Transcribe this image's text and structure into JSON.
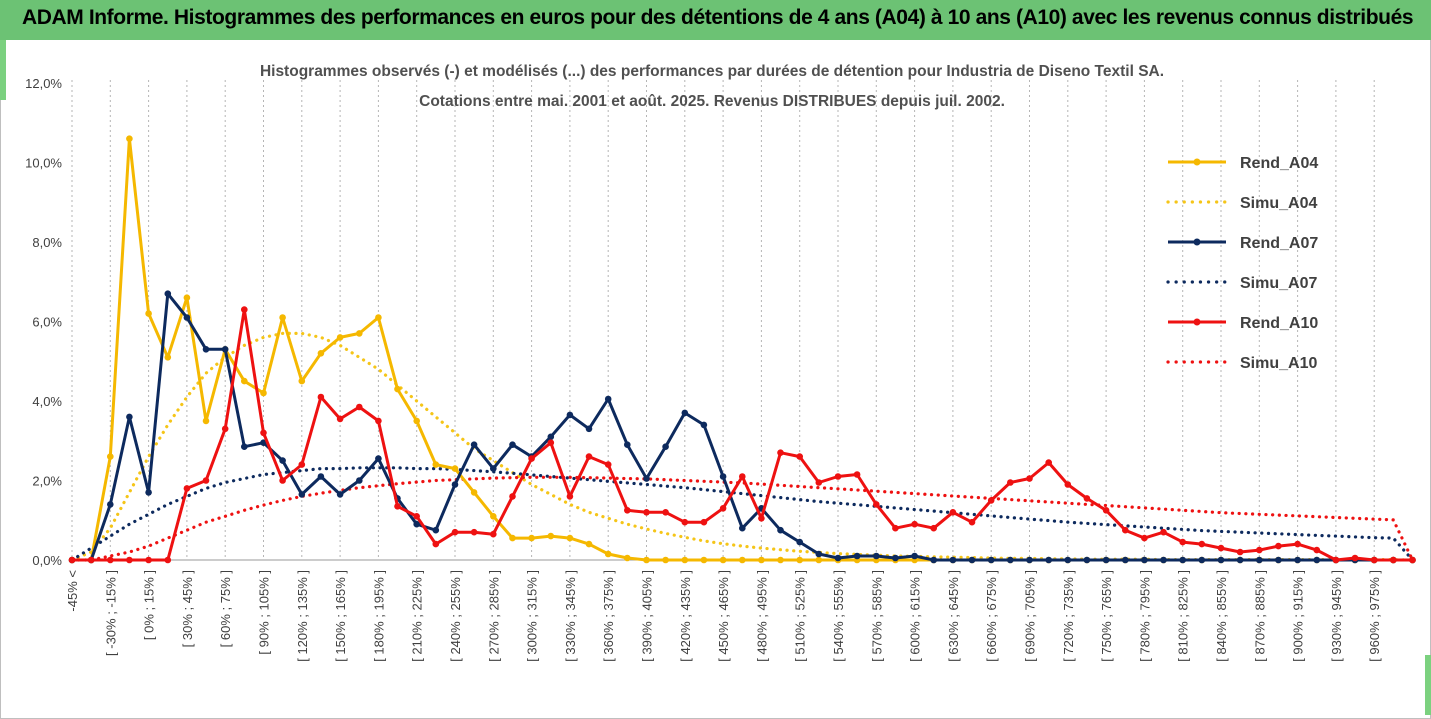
{
  "banner": {
    "title": "ADAM Informe. Histogrammes des performances en euros pour des détentions de 4 ans (A04) à 10 ans (A10) avec les revenus connus distribués"
  },
  "chart_data": {
    "type": "line",
    "title": "Histogrammes observés (-) et modélisés (...) des performances par durées de détention pour Industria de Diseno Textil SA.",
    "subtitle": "Cotations entre mai. 2001 et août. 2025. Revenus DISTRIBUES depuis juil. 2002.",
    "ylim": [
      0,
      12
    ],
    "yticks": [
      "0,0%",
      "2,0%",
      "4,0%",
      "6,0%",
      "8,0%",
      "10,0%",
      "12,0%"
    ],
    "grid": "vertical dotted",
    "legend_position": "right",
    "xtick_labels": [
      "-45% <",
      "[ -30% ; -15% ]",
      "[ 0% ; 15% ]",
      "[ 30% ; 45% ]",
      "[ 60% ; 75% ]",
      "[ 90% ; 105% ]",
      "[ 120% ; 135% ]",
      "[ 150% ; 165% ]",
      "[ 180% ; 195% ]",
      "[ 210% ; 225% ]",
      "[ 240% ; 255% ]",
      "[ 270% ; 285% ]",
      "[ 300% ; 315% ]",
      "[ 330% ; 345% ]",
      "[ 360% ; 375% ]",
      "[ 390% ; 405% ]",
      "[ 420% ; 435% ]",
      "[ 450% ; 465% ]",
      "[ 480% ; 495% ]",
      "[ 510% ; 525% ]",
      "[ 540% ; 555% ]",
      "[ 570% ; 585% ]",
      "[ 600% ; 615% ]",
      "[ 630% ; 645% ]",
      "[ 660% ; 675% ]",
      "[ 690% ; 705% ]",
      "[ 720% ; 735% ]",
      "[ 750% ; 765% ]",
      "[ 780% ; 795% ]",
      "[ 810% ; 825% ]",
      "[ 840% ; 855% ]",
      "[ 870% ; 885% ]",
      "[ 900% ; 915% ]",
      "[ 930% ; 945% ]",
      "[ 960% ; 975% ]"
    ],
    "series": [
      {
        "name": "Rend_A04",
        "style": "solid",
        "color": "#f5b800",
        "values": [
          0,
          0,
          2.6,
          10.6,
          6.2,
          5.1,
          6.6,
          3.5,
          5.3,
          4.5,
          4.2,
          6.1,
          4.5,
          5.2,
          5.6,
          5.7,
          6.1,
          4.3,
          3.5,
          2.4,
          2.3,
          1.7,
          1.1,
          0.55,
          0.55,
          0.6,
          0.55,
          0.4,
          0.15,
          0.05,
          0,
          0,
          0,
          0,
          0,
          0,
          0,
          0,
          0,
          0,
          0,
          0,
          0,
          0,
          0,
          0,
          0,
          0,
          0,
          0,
          0,
          0,
          0,
          0,
          0,
          0,
          0,
          0,
          0,
          0,
          0,
          0,
          0,
          0,
          0,
          0,
          0,
          0,
          0,
          0,
          0
        ]
      },
      {
        "name": "Simu_A04",
        "style": "dotted",
        "color": "#f5c518",
        "values": [
          0,
          0.2,
          0.8,
          1.7,
          2.6,
          3.4,
          4.1,
          4.7,
          5.1,
          5.4,
          5.6,
          5.7,
          5.7,
          5.6,
          5.4,
          5.1,
          4.8,
          4.4,
          4.0,
          3.6,
          3.2,
          2.8,
          2.5,
          2.2,
          1.9,
          1.65,
          1.4,
          1.2,
          1.05,
          0.9,
          0.78,
          0.67,
          0.57,
          0.48,
          0.41,
          0.35,
          0.3,
          0.26,
          0.22,
          0.19,
          0.16,
          0.14,
          0.12,
          0.1,
          0.09,
          0.08,
          0.07,
          0.06,
          0.05,
          0.04,
          0.04,
          0.03,
          0.03,
          0.02,
          0.02,
          0.02,
          0.02,
          0.01,
          0.01,
          0.01,
          0.01,
          0.01,
          0.01,
          0.01,
          0.01,
          0.01,
          0.01,
          0.01,
          0.01,
          0.01,
          0
        ]
      },
      {
        "name": "Rend_A07",
        "style": "solid",
        "color": "#0d2a5e",
        "values": [
          0,
          0,
          1.4,
          3.6,
          1.7,
          6.7,
          6.1,
          5.3,
          5.3,
          2.85,
          2.95,
          2.5,
          1.65,
          2.1,
          1.65,
          2.0,
          2.55,
          1.55,
          0.9,
          0.75,
          1.9,
          2.9,
          2.3,
          2.9,
          2.6,
          3.1,
          3.65,
          3.3,
          4.05,
          2.9,
          2.05,
          2.85,
          3.7,
          3.4,
          2.1,
          0.8,
          1.3,
          0.75,
          0.45,
          0.15,
          0.05,
          0.1,
          0.1,
          0.05,
          0.1,
          0,
          0,
          0,
          0,
          0,
          0,
          0,
          0,
          0,
          0,
          0,
          0,
          0,
          0,
          0,
          0,
          0,
          0,
          0,
          0,
          0,
          0,
          0,
          0,
          0,
          0
        ]
      },
      {
        "name": "Simu_A07",
        "style": "dotted",
        "color": "#0d2a5e",
        "values": [
          0,
          0.3,
          0.6,
          0.9,
          1.15,
          1.4,
          1.6,
          1.8,
          1.95,
          2.05,
          2.15,
          2.2,
          2.25,
          2.3,
          2.3,
          2.32,
          2.32,
          2.32,
          2.3,
          2.3,
          2.28,
          2.25,
          2.22,
          2.18,
          2.14,
          2.1,
          2.06,
          2.02,
          1.98,
          1.94,
          1.9,
          1.86,
          1.82,
          1.77,
          1.72,
          1.67,
          1.62,
          1.57,
          1.52,
          1.47,
          1.43,
          1.39,
          1.35,
          1.31,
          1.27,
          1.23,
          1.19,
          1.15,
          1.11,
          1.07,
          1.03,
          0.99,
          0.95,
          0.92,
          0.89,
          0.86,
          0.83,
          0.8,
          0.77,
          0.74,
          0.72,
          0.7,
          0.68,
          0.66,
          0.64,
          0.62,
          0.6,
          0.58,
          0.56,
          0.55,
          0
        ]
      },
      {
        "name": "Rend_A10",
        "style": "solid",
        "color": "#ee1111",
        "values": [
          0,
          0,
          0,
          0,
          0,
          0,
          1.8,
          2.0,
          3.3,
          6.3,
          3.2,
          2.0,
          2.4,
          4.1,
          3.55,
          3.85,
          3.5,
          1.35,
          1.1,
          0.4,
          0.7,
          0.7,
          0.65,
          1.6,
          2.55,
          2.95,
          1.6,
          2.6,
          2.4,
          1.25,
          1.2,
          1.2,
          0.95,
          0.95,
          1.3,
          2.1,
          1.05,
          2.7,
          2.6,
          1.95,
          2.1,
          2.15,
          1.4,
          0.8,
          0.9,
          0.8,
          1.2,
          0.95,
          1.5,
          1.95,
          2.05,
          2.45,
          1.9,
          1.55,
          1.25,
          0.75,
          0.55,
          0.7,
          0.45,
          0.4,
          0.3,
          0.2,
          0.25,
          0.35,
          0.4,
          0.25,
          0,
          0.05,
          0,
          0,
          0
        ]
      },
      {
        "name": "Simu_A10",
        "style": "dotted",
        "color": "#ee1111",
        "values": [
          0,
          0,
          0.1,
          0.2,
          0.35,
          0.55,
          0.75,
          0.95,
          1.1,
          1.25,
          1.38,
          1.5,
          1.6,
          1.68,
          1.75,
          1.82,
          1.87,
          1.92,
          1.96,
          2.0,
          2.02,
          2.04,
          2.06,
          2.07,
          2.08,
          2.08,
          2.08,
          2.07,
          2.06,
          2.05,
          2.04,
          2.02,
          2.0,
          1.98,
          1.96,
          1.94,
          1.91,
          1.88,
          1.85,
          1.82,
          1.79,
          1.76,
          1.73,
          1.7,
          1.67,
          1.64,
          1.61,
          1.58,
          1.55,
          1.52,
          1.49,
          1.46,
          1.43,
          1.4,
          1.37,
          1.34,
          1.31,
          1.28,
          1.25,
          1.22,
          1.19,
          1.17,
          1.15,
          1.13,
          1.11,
          1.09,
          1.07,
          1.05,
          1.03,
          1.01,
          0
        ]
      }
    ]
  }
}
